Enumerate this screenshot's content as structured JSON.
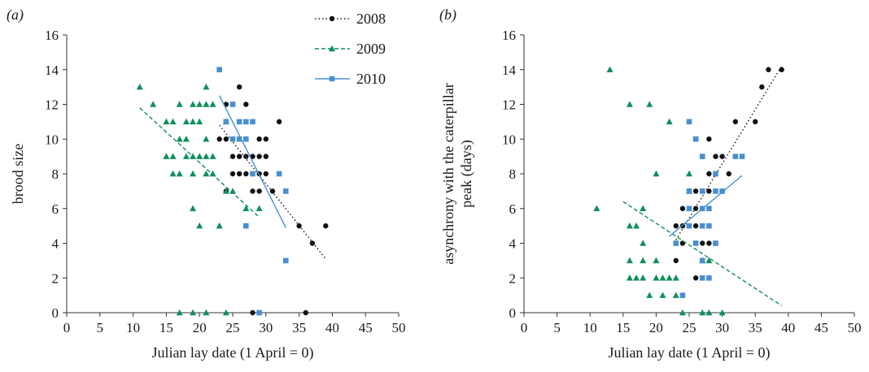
{
  "colors": {
    "2008": "#111111",
    "2009": "#0f8f5a",
    "2010": "#4a8fd0"
  },
  "legend": [
    {
      "label": "2008",
      "marker": "circle",
      "line": "dotted"
    },
    {
      "label": "2009",
      "marker": "triangle",
      "line": "dashed"
    },
    {
      "label": "2010",
      "marker": "square",
      "line": "solid"
    }
  ],
  "chart_data": [
    {
      "type": "scatter",
      "panel_label": "(a)",
      "title": "",
      "xlabel": "Julian lay date (1 April = 0)",
      "ylabel": "brood size",
      "xlim": [
        0,
        50
      ],
      "ylim": [
        0,
        16
      ],
      "xticks": [
        "0",
        "5",
        "10",
        "15",
        "20",
        "25",
        "30",
        "35",
        "40",
        "45",
        "50"
      ],
      "yticks": [
        "0",
        "2",
        "4",
        "6",
        "8",
        "10",
        "12",
        "14",
        "16"
      ],
      "grid": false,
      "legend_position": "top-center",
      "series": [
        {
          "name": "2008",
          "marker": "circle",
          "points": [
            [
              26,
              13
            ],
            [
              24,
              12
            ],
            [
              27,
              12
            ],
            [
              23,
              10
            ],
            [
              24,
              10
            ],
            [
              25,
              10
            ],
            [
              26,
              10
            ],
            [
              29,
              10
            ],
            [
              30,
              10
            ],
            [
              25,
              9
            ],
            [
              26,
              9
            ],
            [
              27,
              9
            ],
            [
              28,
              9
            ],
            [
              29,
              9
            ],
            [
              30,
              9
            ],
            [
              25,
              8
            ],
            [
              26,
              8
            ],
            [
              27,
              8
            ],
            [
              29,
              8
            ],
            [
              30,
              8
            ],
            [
              24,
              7
            ],
            [
              28,
              7
            ],
            [
              29,
              7
            ],
            [
              31,
              7
            ],
            [
              32,
              11
            ],
            [
              35,
              5
            ],
            [
              37,
              4
            ],
            [
              39,
              5
            ],
            [
              28,
              0
            ],
            [
              36,
              0
            ]
          ],
          "trend": [
            [
              23,
              10.8
            ],
            [
              39,
              3.1
            ]
          ]
        },
        {
          "name": "2009",
          "marker": "triangle",
          "points": [
            [
              11,
              13
            ],
            [
              13,
              12
            ],
            [
              15,
              11
            ],
            [
              16,
              11
            ],
            [
              17,
              12
            ],
            [
              18,
              11
            ],
            [
              19,
              12
            ],
            [
              20,
              12
            ],
            [
              21,
              12
            ],
            [
              22,
              12
            ],
            [
              21,
              13
            ],
            [
              24,
              11
            ],
            [
              15,
              9
            ],
            [
              16,
              9
            ],
            [
              17,
              10
            ],
            [
              18,
              10
            ],
            [
              19,
              11
            ],
            [
              20,
              11
            ],
            [
              21,
              10
            ],
            [
              18,
              9
            ],
            [
              19,
              9
            ],
            [
              20,
              9
            ],
            [
              21,
              9
            ],
            [
              22,
              9
            ],
            [
              16,
              8
            ],
            [
              17,
              8
            ],
            [
              19,
              8
            ],
            [
              21,
              8
            ],
            [
              22,
              8
            ],
            [
              19,
              6
            ],
            [
              20,
              5
            ],
            [
              23,
              5
            ],
            [
              24,
              7
            ],
            [
              25,
              7
            ],
            [
              27,
              6
            ],
            [
              29,
              6
            ],
            [
              17,
              0
            ],
            [
              19,
              0
            ],
            [
              21,
              0
            ],
            [
              24,
              0
            ]
          ],
          "trend": [
            [
              11,
              11.8
            ],
            [
              29,
              5.5
            ]
          ]
        },
        {
          "name": "2010",
          "marker": "square",
          "points": [
            [
              23,
              14
            ],
            [
              24,
              11
            ],
            [
              25,
              12
            ],
            [
              26,
              11
            ],
            [
              27,
              11
            ],
            [
              28,
              11
            ],
            [
              25,
              10
            ],
            [
              26,
              10
            ],
            [
              27,
              10
            ],
            [
              28,
              8
            ],
            [
              32,
              8
            ],
            [
              33,
              7
            ],
            [
              27,
              5
            ],
            [
              33,
              3
            ],
            [
              29,
              0
            ]
          ],
          "trend": [
            [
              23,
              12.5
            ],
            [
              33,
              4.9
            ]
          ]
        }
      ]
    },
    {
      "type": "scatter",
      "panel_label": "(b)",
      "title": "",
      "xlabel": "Julian lay date (1 April = 0)",
      "ylabel": "asynchrony with the caterpillar peak (days)",
      "xlim": [
        0,
        50
      ],
      "ylim": [
        0,
        16
      ],
      "xticks": [
        "0",
        "5",
        "10",
        "15",
        "20",
        "25",
        "30",
        "35",
        "40",
        "45",
        "50"
      ],
      "yticks": [
        "0",
        "2",
        "4",
        "6",
        "8",
        "10",
        "12",
        "14",
        "16"
      ],
      "grid": false,
      "series": [
        {
          "name": "2008",
          "marker": "circle",
          "points": [
            [
              37,
              14
            ],
            [
              39,
              14
            ],
            [
              36,
              13
            ],
            [
              32,
              11
            ],
            [
              35,
              11
            ],
            [
              28,
              10
            ],
            [
              29,
              9
            ],
            [
              30,
              9
            ],
            [
              28,
              8
            ],
            [
              31,
              8
            ],
            [
              26,
              7
            ],
            [
              27,
              7
            ],
            [
              28,
              7
            ],
            [
              29,
              7
            ],
            [
              30,
              7
            ],
            [
              24,
              6
            ],
            [
              26,
              6
            ],
            [
              27,
              6
            ],
            [
              23,
              5
            ],
            [
              24,
              5
            ],
            [
              25,
              5
            ],
            [
              26,
              5
            ],
            [
              24,
              4
            ],
            [
              27,
              4
            ],
            [
              28,
              4
            ],
            [
              29,
              4
            ],
            [
              23,
              3
            ],
            [
              26,
              2
            ]
          ],
          "trend": [
            [
              23,
              4.2
            ],
            [
              39,
              14.2
            ]
          ]
        },
        {
          "name": "2009",
          "marker": "triangle",
          "points": [
            [
              13,
              14
            ],
            [
              16,
              12
            ],
            [
              19,
              12
            ],
            [
              22,
              11
            ],
            [
              20,
              8
            ],
            [
              25,
              8
            ],
            [
              11,
              6
            ],
            [
              18,
              6
            ],
            [
              25,
              7
            ],
            [
              16,
              5
            ],
            [
              17,
              5
            ],
            [
              16,
              3
            ],
            [
              18,
              4
            ],
            [
              18,
              3
            ],
            [
              20,
              3
            ],
            [
              16,
              2
            ],
            [
              17,
              2
            ],
            [
              18,
              2
            ],
            [
              20,
              2
            ],
            [
              21,
              2
            ],
            [
              22,
              2
            ],
            [
              23,
              2
            ],
            [
              27,
              3
            ],
            [
              28,
              3
            ],
            [
              19,
              1
            ],
            [
              21,
              1
            ],
            [
              23,
              1
            ],
            [
              24,
              0
            ],
            [
              27,
              0
            ],
            [
              28,
              0
            ],
            [
              30,
              0
            ]
          ],
          "trend": [
            [
              15,
              6.4
            ],
            [
              39,
              0.4
            ]
          ]
        },
        {
          "name": "2010",
          "marker": "square",
          "points": [
            [
              25,
              11
            ],
            [
              26,
              10
            ],
            [
              27,
              9
            ],
            [
              32,
              9
            ],
            [
              33,
              9
            ],
            [
              25,
              7
            ],
            [
              27,
              7
            ],
            [
              29,
              8
            ],
            [
              29,
              7
            ],
            [
              30,
              7
            ],
            [
              25,
              6
            ],
            [
              27,
              6
            ],
            [
              28,
              6
            ],
            [
              25,
              5
            ],
            [
              27,
              5
            ],
            [
              28,
              5
            ],
            [
              23,
              4
            ],
            [
              26,
              4
            ],
            [
              29,
              4
            ],
            [
              27,
              3
            ],
            [
              27,
              2
            ],
            [
              28,
              2
            ],
            [
              24,
              1
            ]
          ],
          "trend": [
            [
              22,
              4.4
            ],
            [
              33,
              7.9
            ]
          ]
        }
      ]
    }
  ]
}
